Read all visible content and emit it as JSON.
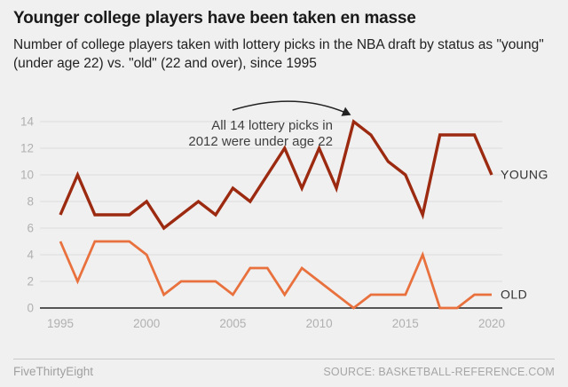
{
  "header": {
    "title": "Younger college players have been taken en masse",
    "subtitle": "Number of college players taken with lottery picks in the NBA draft by status as \"young\" (under age 22) vs. \"old\" (22 and over), since 1995"
  },
  "chart_data": {
    "type": "line",
    "x": [
      1995,
      1996,
      1997,
      1998,
      1999,
      2000,
      2001,
      2002,
      2003,
      2004,
      2005,
      2006,
      2007,
      2008,
      2009,
      2010,
      2011,
      2012,
      2013,
      2014,
      2015,
      2016,
      2017,
      2018,
      2019,
      2020
    ],
    "series": [
      {
        "name": "YOUNG",
        "color": "#9c2a10",
        "values": [
          7,
          10,
          7,
          7,
          7,
          8,
          6,
          7,
          8,
          7,
          9,
          8,
          10,
          12,
          9,
          12,
          9,
          14,
          13,
          11,
          10,
          7,
          13,
          13,
          13,
          10
        ]
      },
      {
        "name": "OLD",
        "color": "#e8713e",
        "values": [
          5,
          2,
          5,
          5,
          5,
          4,
          1,
          2,
          2,
          2,
          1,
          3,
          3,
          1,
          3,
          2,
          1,
          0,
          1,
          1,
          1,
          4,
          0,
          0,
          1,
          1
        ]
      }
    ],
    "title": "",
    "xlabel": "",
    "ylabel": "",
    "xlim": [
      1995,
      2020
    ],
    "ylim": [
      0,
      14
    ],
    "yticks": [
      0,
      2,
      4,
      6,
      8,
      10,
      12,
      14
    ],
    "xticks": [
      1995,
      2000,
      2005,
      2010,
      2015,
      2020
    ],
    "grid": true,
    "legend_position": "end-of-line",
    "annotation": {
      "lines": [
        "All 14 lottery picks in",
        "2012 were under age 22"
      ],
      "target_year": 2012,
      "target_value": 14
    }
  },
  "footer": {
    "brand": "FiveThirtyEight",
    "source": "SOURCE: BASKETBALL-REFERENCE.COM"
  },
  "colors": {
    "background": "#f0f0f0",
    "grid": "#dcdcdc",
    "axis": "#222222",
    "tick_label": "#b0b0b0",
    "series_label": "#333333",
    "annotation_text": "#404040",
    "arrow": "#222222"
  }
}
